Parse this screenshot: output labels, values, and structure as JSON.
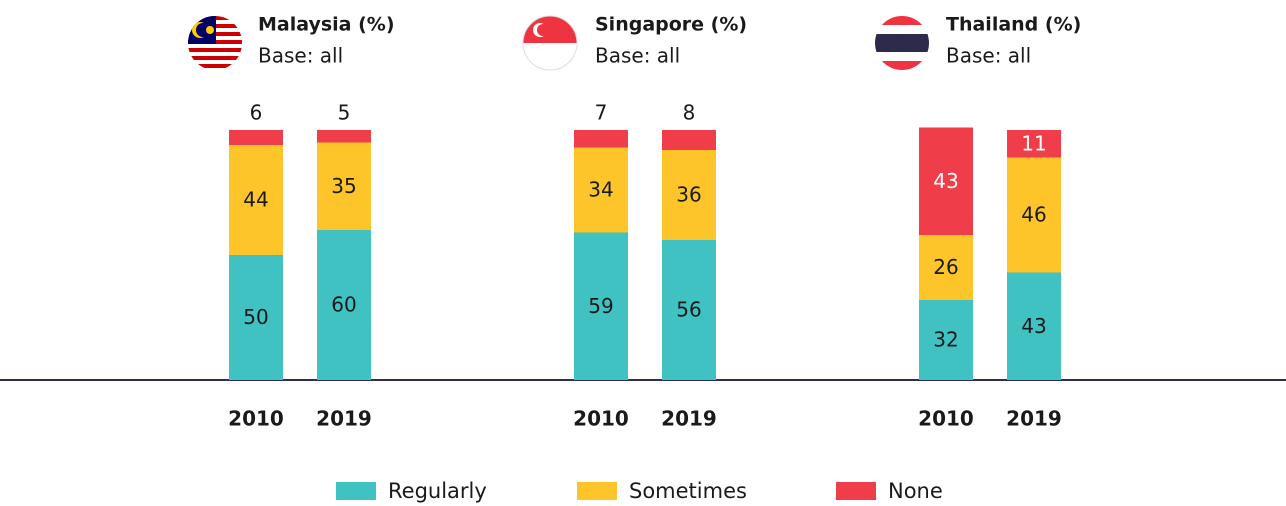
{
  "chart_data": [
    {
      "type": "bar",
      "stacked": true,
      "title": "Malaysia (%)",
      "subtitle": "Base: all",
      "categories": [
        "2010",
        "2019"
      ],
      "ylim": [
        0,
        100
      ],
      "series": [
        {
          "name": "Regularly",
          "color": "#40c1c2",
          "values": [
            50,
            60
          ]
        },
        {
          "name": "Sometimes",
          "color": "#fdc52a",
          "values": [
            44,
            35
          ]
        },
        {
          "name": "None",
          "color": "#ef3e4a",
          "values": [
            6,
            5
          ]
        }
      ]
    },
    {
      "type": "bar",
      "stacked": true,
      "title": "Singapore (%)",
      "subtitle": "Base: all",
      "categories": [
        "2010",
        "2019"
      ],
      "ylim": [
        0,
        100
      ],
      "series": [
        {
          "name": "Regularly",
          "color": "#40c1c2",
          "values": [
            59,
            56
          ]
        },
        {
          "name": "Sometimes",
          "color": "#fdc52a",
          "values": [
            34,
            36
          ]
        },
        {
          "name": "None",
          "color": "#ef3e4a",
          "values": [
            7,
            8
          ]
        }
      ]
    },
    {
      "type": "bar",
      "stacked": true,
      "title": "Thailand (%)",
      "subtitle": "Base: all",
      "categories": [
        "2010",
        "2019"
      ],
      "ylim": [
        0,
        100
      ],
      "series": [
        {
          "name": "Regularly",
          "color": "#40c1c2",
          "values": [
            32,
            43
          ]
        },
        {
          "name": "Sometimes",
          "color": "#fdc52a",
          "values": [
            26,
            46
          ]
        },
        {
          "name": "None",
          "color": "#ef3e4a",
          "values": [
            43,
            11
          ]
        }
      ]
    }
  ]
}
